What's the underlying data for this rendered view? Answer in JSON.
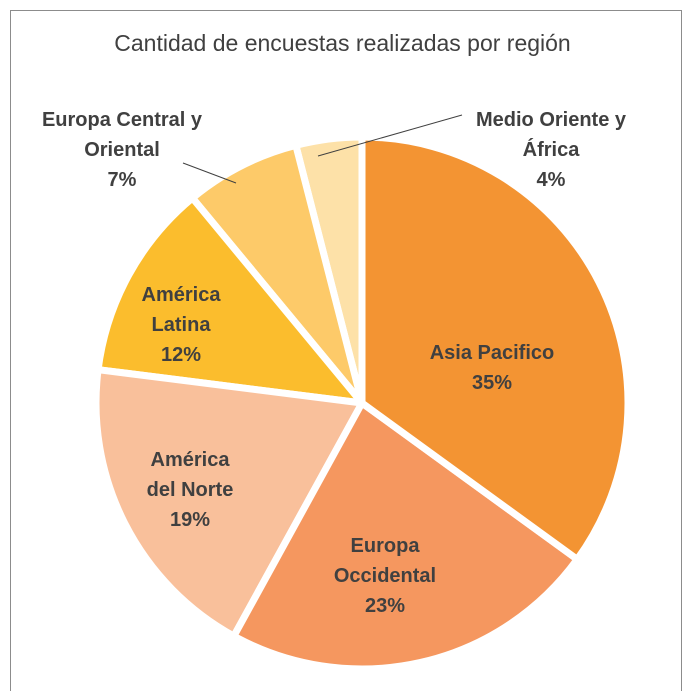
{
  "chart_data": {
    "type": "pie",
    "title": "Cantidad de encuestas realizadas por región",
    "categories": [
      "Asia Pacifico",
      "Europa Occidental",
      "América del Norte",
      "América Latina",
      "Europa Central y Oriental",
      "Medio Oriente y África"
    ],
    "values": [
      35,
      23,
      19,
      12,
      7,
      4
    ],
    "value_labels": [
      "35%",
      "23%",
      "19%",
      "12%",
      "7%",
      "4%"
    ],
    "colors": [
      "#f39433",
      "#f5975f",
      "#f9c09b",
      "#fbbd2d",
      "#fdca69",
      "#fde1a8"
    ]
  }
}
